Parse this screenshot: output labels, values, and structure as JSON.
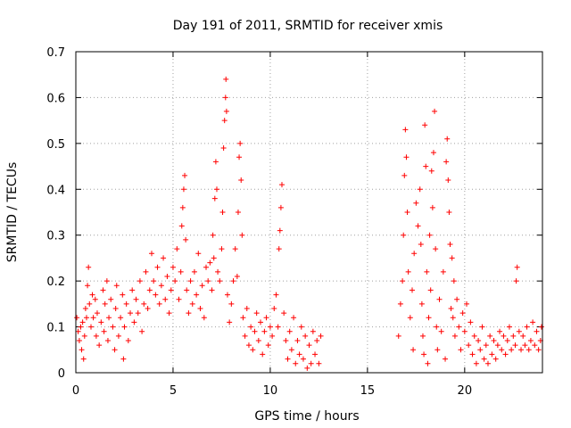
{
  "chart_data": {
    "type": "scatter",
    "title": "Day 191 of 2011, SRMTID for receiver xmis",
    "xlabel": "GPS time / hours",
    "ylabel": "SRMTID / TECUs",
    "xlim": [
      0,
      24
    ],
    "ylim": [
      0,
      0.7
    ],
    "grid": true,
    "marker": "+",
    "color": "#ff0000",
    "xticks": [
      0,
      5,
      10,
      15,
      20
    ],
    "xtick_labels": [
      "0",
      "5",
      "10",
      "15",
      "20"
    ],
    "yticks": [
      0,
      0.1,
      0.2,
      0.3,
      0.4,
      0.5,
      0.6,
      0.7
    ],
    "ytick_labels": [
      "0",
      "0.1",
      "0.2",
      "0.3",
      "0.4",
      "0.5",
      "0.6",
      "0.7"
    ],
    "series": [
      {
        "name": "SRMTID",
        "points": [
          [
            0.05,
            0.12
          ],
          [
            0.12,
            0.09
          ],
          [
            0.18,
            0.07
          ],
          [
            0.25,
            0.1
          ],
          [
            0.3,
            0.05
          ],
          [
            0.35,
            0.11
          ],
          [
            0.4,
            0.03
          ],
          [
            0.45,
            0.08
          ],
          [
            0.5,
            0.14
          ],
          [
            0.55,
            0.12
          ],
          [
            0.6,
            0.19
          ],
          [
            0.65,
            0.23
          ],
          [
            0.7,
            0.15
          ],
          [
            0.78,
            0.1
          ],
          [
            0.85,
            0.17
          ],
          [
            0.9,
            0.12
          ],
          [
            1.0,
            0.16
          ],
          [
            1.05,
            0.08
          ],
          [
            1.1,
            0.13
          ],
          [
            1.2,
            0.06
          ],
          [
            1.3,
            0.11
          ],
          [
            1.4,
            0.18
          ],
          [
            1.45,
            0.09
          ],
          [
            1.5,
            0.15
          ],
          [
            1.6,
            0.2
          ],
          [
            1.65,
            0.07
          ],
          [
            1.7,
            0.12
          ],
          [
            1.8,
            0.16
          ],
          [
            1.9,
            0.1
          ],
          [
            2.0,
            0.05
          ],
          [
            2.05,
            0.14
          ],
          [
            2.1,
            0.19
          ],
          [
            2.2,
            0.08
          ],
          [
            2.3,
            0.12
          ],
          [
            2.4,
            0.17
          ],
          [
            2.45,
            0.03
          ],
          [
            2.5,
            0.1
          ],
          [
            2.6,
            0.15
          ],
          [
            2.7,
            0.07
          ],
          [
            2.8,
            0.13
          ],
          [
            2.9,
            0.18
          ],
          [
            3.0,
            0.11
          ],
          [
            3.1,
            0.16
          ],
          [
            3.2,
            0.13
          ],
          [
            3.3,
            0.2
          ],
          [
            3.4,
            0.09
          ],
          [
            3.5,
            0.15
          ],
          [
            3.6,
            0.22
          ],
          [
            3.7,
            0.14
          ],
          [
            3.8,
            0.18
          ],
          [
            3.9,
            0.26
          ],
          [
            4.0,
            0.2
          ],
          [
            4.1,
            0.17
          ],
          [
            4.2,
            0.23
          ],
          [
            4.3,
            0.15
          ],
          [
            4.4,
            0.19
          ],
          [
            4.5,
            0.25
          ],
          [
            4.6,
            0.16
          ],
          [
            4.7,
            0.21
          ],
          [
            4.8,
            0.13
          ],
          [
            4.9,
            0.18
          ],
          [
            5.0,
            0.23
          ],
          [
            5.1,
            0.2
          ],
          [
            5.2,
            0.27
          ],
          [
            5.3,
            0.16
          ],
          [
            5.4,
            0.22
          ],
          [
            5.45,
            0.32
          ],
          [
            5.5,
            0.36
          ],
          [
            5.55,
            0.4
          ],
          [
            5.6,
            0.43
          ],
          [
            5.65,
            0.29
          ],
          [
            5.7,
            0.18
          ],
          [
            5.8,
            0.13
          ],
          [
            5.9,
            0.2
          ],
          [
            6.0,
            0.15
          ],
          [
            6.1,
            0.22
          ],
          [
            6.2,
            0.17
          ],
          [
            6.3,
            0.26
          ],
          [
            6.4,
            0.14
          ],
          [
            6.5,
            0.19
          ],
          [
            6.6,
            0.12
          ],
          [
            6.7,
            0.23
          ],
          [
            6.8,
            0.2
          ],
          [
            6.9,
            0.24
          ],
          [
            7.0,
            0.18
          ],
          [
            7.05,
            0.3
          ],
          [
            7.1,
            0.25
          ],
          [
            7.15,
            0.38
          ],
          [
            7.2,
            0.46
          ],
          [
            7.25,
            0.4
          ],
          [
            7.3,
            0.22
          ],
          [
            7.4,
            0.2
          ],
          [
            7.5,
            0.27
          ],
          [
            7.55,
            0.35
          ],
          [
            7.6,
            0.49
          ],
          [
            7.65,
            0.55
          ],
          [
            7.7,
            0.6
          ],
          [
            7.72,
            0.64
          ],
          [
            7.75,
            0.57
          ],
          [
            7.8,
            0.17
          ],
          [
            7.9,
            0.11
          ],
          [
            8.0,
            0.15
          ],
          [
            8.1,
            0.2
          ],
          [
            8.2,
            0.27
          ],
          [
            8.3,
            0.21
          ],
          [
            8.35,
            0.35
          ],
          [
            8.4,
            0.47
          ],
          [
            8.45,
            0.5
          ],
          [
            8.5,
            0.42
          ],
          [
            8.55,
            0.3
          ],
          [
            8.6,
            0.12
          ],
          [
            8.7,
            0.08
          ],
          [
            8.8,
            0.14
          ],
          [
            8.9,
            0.06
          ],
          [
            9.0,
            0.1
          ],
          [
            9.1,
            0.05
          ],
          [
            9.2,
            0.09
          ],
          [
            9.3,
            0.13
          ],
          [
            9.4,
            0.07
          ],
          [
            9.5,
            0.11
          ],
          [
            9.6,
            0.04
          ],
          [
            9.7,
            0.09
          ],
          [
            9.8,
            0.12
          ],
          [
            9.9,
            0.06
          ],
          [
            10.0,
            0.1
          ],
          [
            10.1,
            0.08
          ],
          [
            10.2,
            0.14
          ],
          [
            10.3,
            0.17
          ],
          [
            10.4,
            0.1
          ],
          [
            10.45,
            0.27
          ],
          [
            10.5,
            0.31
          ],
          [
            10.55,
            0.36
          ],
          [
            10.6,
            0.41
          ],
          [
            10.7,
            0.13
          ],
          [
            10.8,
            0.07
          ],
          [
            10.9,
            0.03
          ],
          [
            11.0,
            0.09
          ],
          [
            11.1,
            0.05
          ],
          [
            11.2,
            0.12
          ],
          [
            11.3,
            0.02
          ],
          [
            11.4,
            0.07
          ],
          [
            11.5,
            0.04
          ],
          [
            11.6,
            0.1
          ],
          [
            11.7,
            0.03
          ],
          [
            11.8,
            0.08
          ],
          [
            11.9,
            0.01
          ],
          [
            12.0,
            0.06
          ],
          [
            12.1,
            0.02
          ],
          [
            12.2,
            0.09
          ],
          [
            12.3,
            0.04
          ],
          [
            12.4,
            0.07
          ],
          [
            12.5,
            0.02
          ],
          [
            12.6,
            0.08
          ],
          [
            16.6,
            0.08
          ],
          [
            16.7,
            0.15
          ],
          [
            16.8,
            0.2
          ],
          [
            16.85,
            0.3
          ],
          [
            16.9,
            0.43
          ],
          [
            16.95,
            0.53
          ],
          [
            17.0,
            0.47
          ],
          [
            17.05,
            0.35
          ],
          [
            17.1,
            0.22
          ],
          [
            17.2,
            0.12
          ],
          [
            17.3,
            0.18
          ],
          [
            17.35,
            0.05
          ],
          [
            17.4,
            0.26
          ],
          [
            17.5,
            0.37
          ],
          [
            17.6,
            0.32
          ],
          [
            17.7,
            0.4
          ],
          [
            17.75,
            0.28
          ],
          [
            17.8,
            0.15
          ],
          [
            17.85,
            0.08
          ],
          [
            17.9,
            0.04
          ],
          [
            17.95,
            0.54
          ],
          [
            18.0,
            0.45
          ],
          [
            18.05,
            0.22
          ],
          [
            18.1,
            0.02
          ],
          [
            18.15,
            0.12
          ],
          [
            18.2,
            0.3
          ],
          [
            18.25,
            0.18
          ],
          [
            18.3,
            0.44
          ],
          [
            18.35,
            0.36
          ],
          [
            18.4,
            0.48
          ],
          [
            18.45,
            0.57
          ],
          [
            18.5,
            0.27
          ],
          [
            18.55,
            0.1
          ],
          [
            18.6,
            0.05
          ],
          [
            18.7,
            0.16
          ],
          [
            18.8,
            0.09
          ],
          [
            18.9,
            0.22
          ],
          [
            19.0,
            0.03
          ],
          [
            19.05,
            0.46
          ],
          [
            19.1,
            0.51
          ],
          [
            19.15,
            0.42
          ],
          [
            19.2,
            0.35
          ],
          [
            19.25,
            0.28
          ],
          [
            19.3,
            0.14
          ],
          [
            19.35,
            0.25
          ],
          [
            19.4,
            0.12
          ],
          [
            19.45,
            0.2
          ],
          [
            19.5,
            0.08
          ],
          [
            19.6,
            0.16
          ],
          [
            19.7,
            0.1
          ],
          [
            19.8,
            0.05
          ],
          [
            19.9,
            0.13
          ],
          [
            20.0,
            0.09
          ],
          [
            20.1,
            0.15
          ],
          [
            20.2,
            0.06
          ],
          [
            20.3,
            0.11
          ],
          [
            20.4,
            0.04
          ],
          [
            20.5,
            0.08
          ],
          [
            20.6,
            0.02
          ],
          [
            20.7,
            0.07
          ],
          [
            20.8,
            0.05
          ],
          [
            20.9,
            0.1
          ],
          [
            21.0,
            0.03
          ],
          [
            21.1,
            0.06
          ],
          [
            21.2,
            0.02
          ],
          [
            21.3,
            0.08
          ],
          [
            21.4,
            0.04
          ],
          [
            21.5,
            0.07
          ],
          [
            21.6,
            0.03
          ],
          [
            21.7,
            0.06
          ],
          [
            21.8,
            0.09
          ],
          [
            21.9,
            0.05
          ],
          [
            22.0,
            0.08
          ],
          [
            22.1,
            0.04
          ],
          [
            22.2,
            0.07
          ],
          [
            22.3,
            0.1
          ],
          [
            22.4,
            0.05
          ],
          [
            22.5,
            0.08
          ],
          [
            22.6,
            0.06
          ],
          [
            22.65,
            0.2
          ],
          [
            22.7,
            0.23
          ],
          [
            22.8,
            0.09
          ],
          [
            22.9,
            0.05
          ],
          [
            23.0,
            0.08
          ],
          [
            23.1,
            0.06
          ],
          [
            23.2,
            0.1
          ],
          [
            23.3,
            0.05
          ],
          [
            23.4,
            0.07
          ],
          [
            23.5,
            0.11
          ],
          [
            23.6,
            0.06
          ],
          [
            23.7,
            0.09
          ],
          [
            23.8,
            0.05
          ],
          [
            23.9,
            0.07
          ],
          [
            23.95,
            0.1
          ]
        ]
      }
    ]
  }
}
